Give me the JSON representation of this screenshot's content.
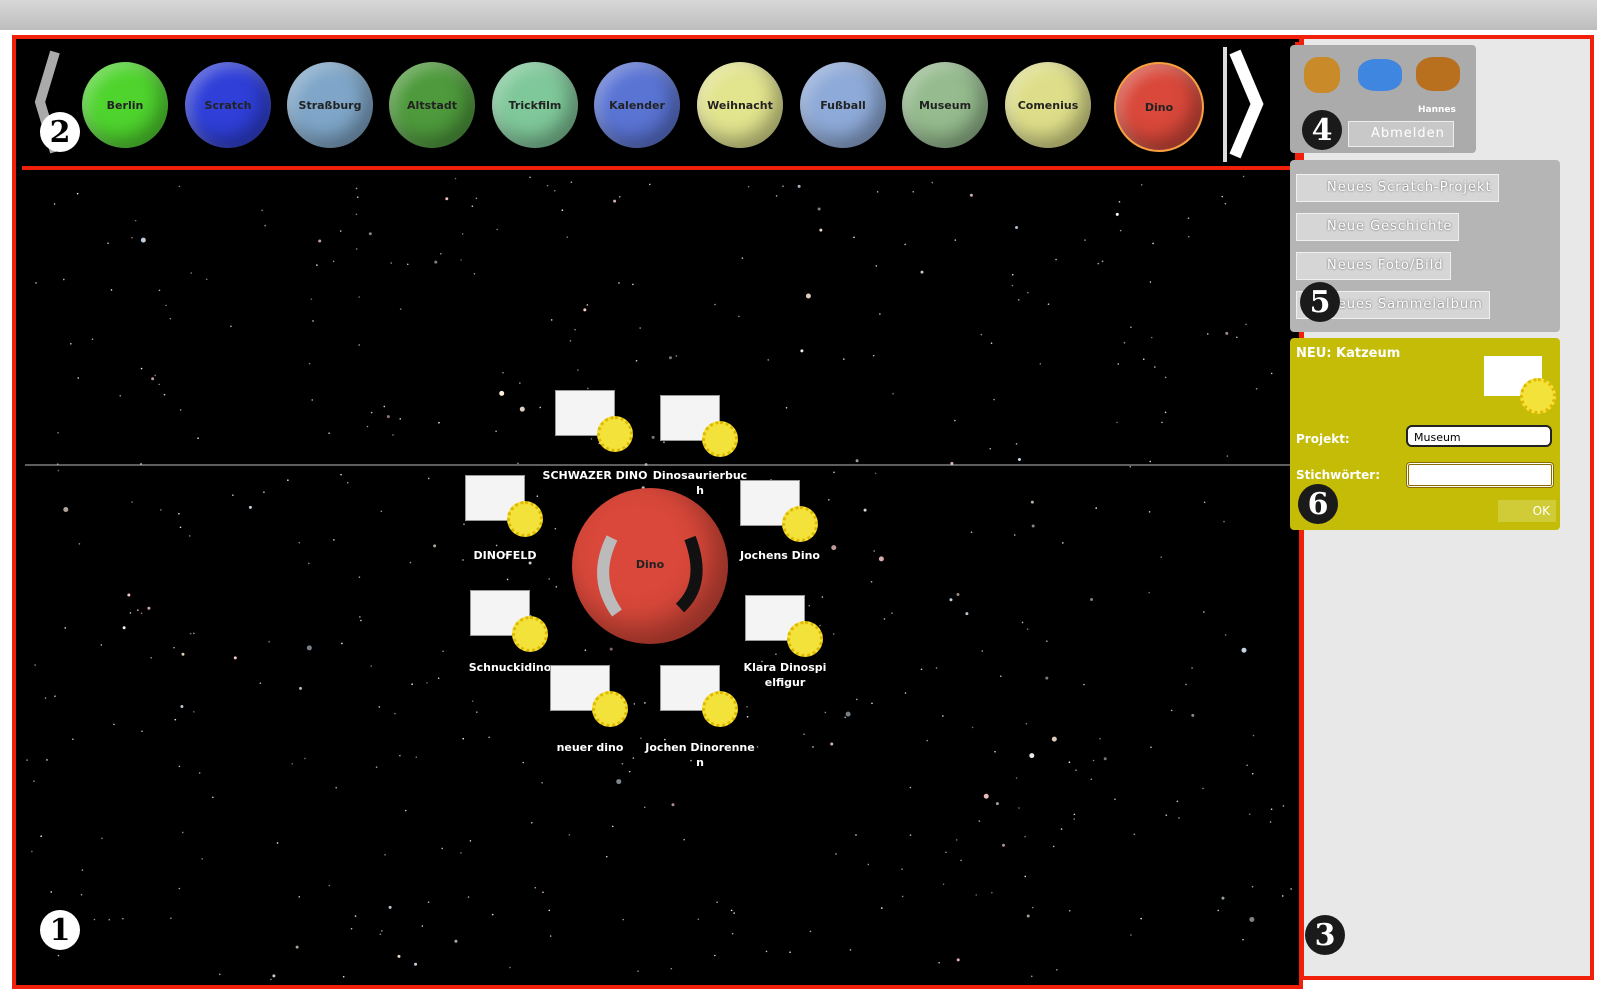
{
  "categories": [
    {
      "label": "Berlin",
      "color": "#4fd42e"
    },
    {
      "label": "Scratch",
      "color": "#2f3fd8"
    },
    {
      "label": "Straßburg",
      "color": "#7fa6c8"
    },
    {
      "label": "Altstadt",
      "color": "#4e9a3c"
    },
    {
      "label": "Trickfilm",
      "color": "#7fc89a"
    },
    {
      "label": "Kalender",
      "color": "#5a74d4"
    },
    {
      "label": "Weihnacht",
      "color": "#e2e48e"
    },
    {
      "label": "Fußball",
      "color": "#8eaad8"
    },
    {
      "label": "Museum",
      "color": "#95bb8e"
    },
    {
      "label": "Comenius",
      "color": "#dede8a"
    },
    {
      "label": "Dino",
      "color": "#d9483a"
    }
  ],
  "center": "Dino",
  "items": [
    "SCHWAZER DINO",
    "Dinosaurierbuch",
    "DINOFELD",
    "Jochens Dino",
    "Schnuckidino",
    "Klara Dinospielfigur",
    "neuer dino",
    "Jochen Dinorennen"
  ],
  "user": {
    "name": "Hannes",
    "logout": "Abmelden"
  },
  "actions": [
    "Neues Scratch-Projekt",
    "Neue Geschichte",
    "Neues Foto/Bild",
    "Neues Sammelalbum"
  ],
  "form": {
    "title": "NEU: Katzeum",
    "project_label": "Projekt:",
    "project_value": "Museum",
    "keywords_label": "Stichwörter:",
    "ok": "OK"
  },
  "badges": [
    "1",
    "2",
    "3",
    "4",
    "5",
    "6"
  ]
}
